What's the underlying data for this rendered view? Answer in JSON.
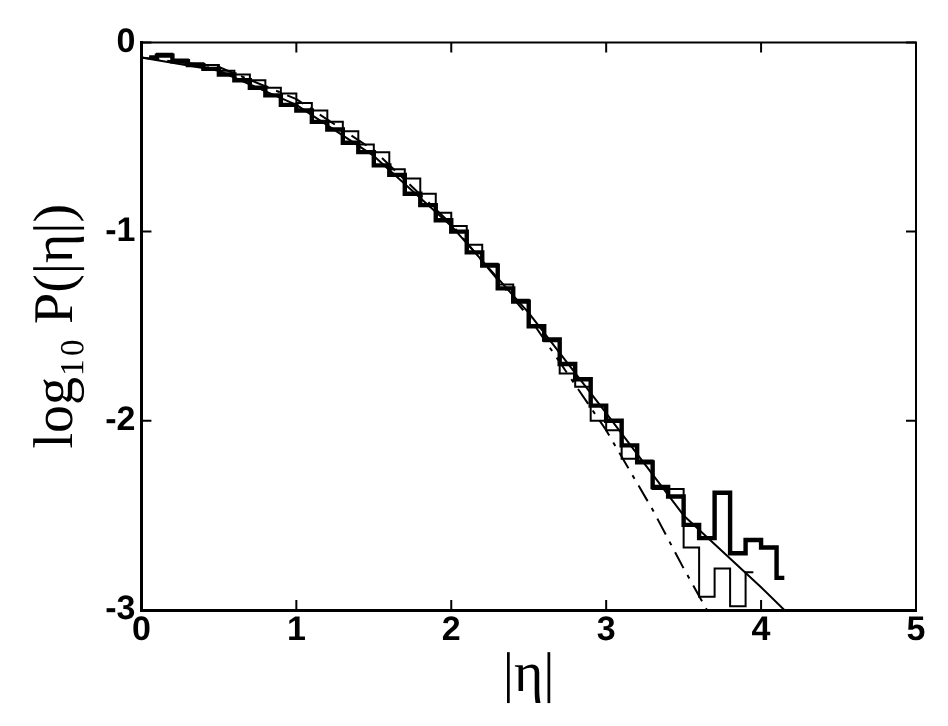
{
  "chart_data": {
    "type": "line",
    "xlabel": "|η|",
    "ylabel": "log₁₀ P(|η|)",
    "xlim": [
      0,
      5
    ],
    "xticks": [
      0,
      1,
      2,
      3,
      4,
      5
    ],
    "ylim": [
      -3,
      0
    ],
    "yticks": [
      0,
      -1,
      -2,
      -3
    ],
    "grid": false,
    "legend": false,
    "marker": "none",
    "series": [
      {
        "type": "step",
        "color": "#000000",
        "x": [
          0.05,
          0.15,
          0.25,
          0.35,
          0.45,
          0.55,
          0.65,
          0.75,
          0.85,
          0.95,
          1.05,
          1.15,
          1.25,
          1.35,
          1.45,
          1.55,
          1.65,
          1.75,
          1.85,
          1.95,
          2.05,
          2.15,
          2.25,
          2.35,
          2.45,
          2.55,
          2.65,
          2.75,
          2.85,
          2.95,
          3.05,
          3.15,
          3.25,
          3.35,
          3.45,
          3.55,
          3.65,
          3.75,
          3.85,
          3.95,
          4.05,
          4.15
        ],
        "values": [
          -0.08,
          -0.07,
          -0.1,
          -0.12,
          -0.14,
          -0.17,
          -0.2,
          -0.24,
          -0.28,
          -0.33,
          -0.36,
          -0.42,
          -0.46,
          -0.53,
          -0.58,
          -0.65,
          -0.7,
          -0.8,
          -0.86,
          -0.94,
          -1.0,
          -1.11,
          -1.18,
          -1.3,
          -1.37,
          -1.5,
          -1.57,
          -1.7,
          -1.78,
          -1.92,
          -2.0,
          -2.13,
          -2.22,
          -2.35,
          -2.4,
          -2.55,
          -2.62,
          -2.38,
          -2.7,
          -2.63,
          -2.67,
          -2.83
        ]
      },
      {
        "type": "step",
        "color": "#000000",
        "x": [
          0.05,
          0.15,
          0.25,
          0.35,
          0.45,
          0.55,
          0.65,
          0.75,
          0.85,
          0.95,
          1.05,
          1.15,
          1.25,
          1.35,
          1.45,
          1.55,
          1.65,
          1.75,
          1.85,
          1.95,
          2.05,
          2.15,
          2.25,
          2.35,
          2.45,
          2.55,
          2.65,
          2.75,
          2.85,
          2.95,
          3.05,
          3.15,
          3.25,
          3.35,
          3.45,
          3.55,
          3.65,
          3.75,
          3.85,
          3.95
        ],
        "values": [
          -0.08,
          -0.06,
          -0.09,
          -0.11,
          -0.12,
          -0.15,
          -0.17,
          -0.2,
          -0.24,
          -0.27,
          -0.32,
          -0.36,
          -0.42,
          -0.47,
          -0.54,
          -0.58,
          -0.67,
          -0.72,
          -0.8,
          -0.9,
          -0.97,
          -1.07,
          -1.17,
          -1.28,
          -1.36,
          -1.5,
          -1.58,
          -1.75,
          -1.82,
          -2.0,
          -2.05,
          -2.2,
          -2.21,
          -2.36,
          -2.36,
          -2.67,
          -2.93,
          -2.78,
          -2.98,
          -2.8
        ]
      },
      {
        "color": "#000000",
        "line_style": "solid",
        "x": [
          0,
          0.5,
          1,
          1.5,
          2,
          2.5,
          3,
          3.5,
          4,
          4.15
        ],
        "values": [
          -0.08,
          -0.15,
          -0.33,
          -0.6,
          -0.97,
          -1.43,
          -1.96,
          -2.5,
          -2.88,
          -3
        ]
      },
      {
        "color": "#000000",
        "line_style": "dashed",
        "x": [
          0,
          0.5,
          1,
          1.5,
          2,
          2.5,
          3,
          3.3,
          3.5,
          3.65
        ],
        "values": [
          -0.08,
          -0.13,
          -0.3,
          -0.57,
          -0.96,
          -1.45,
          -2.05,
          -2.47,
          -2.78,
          -3
        ]
      }
    ]
  }
}
